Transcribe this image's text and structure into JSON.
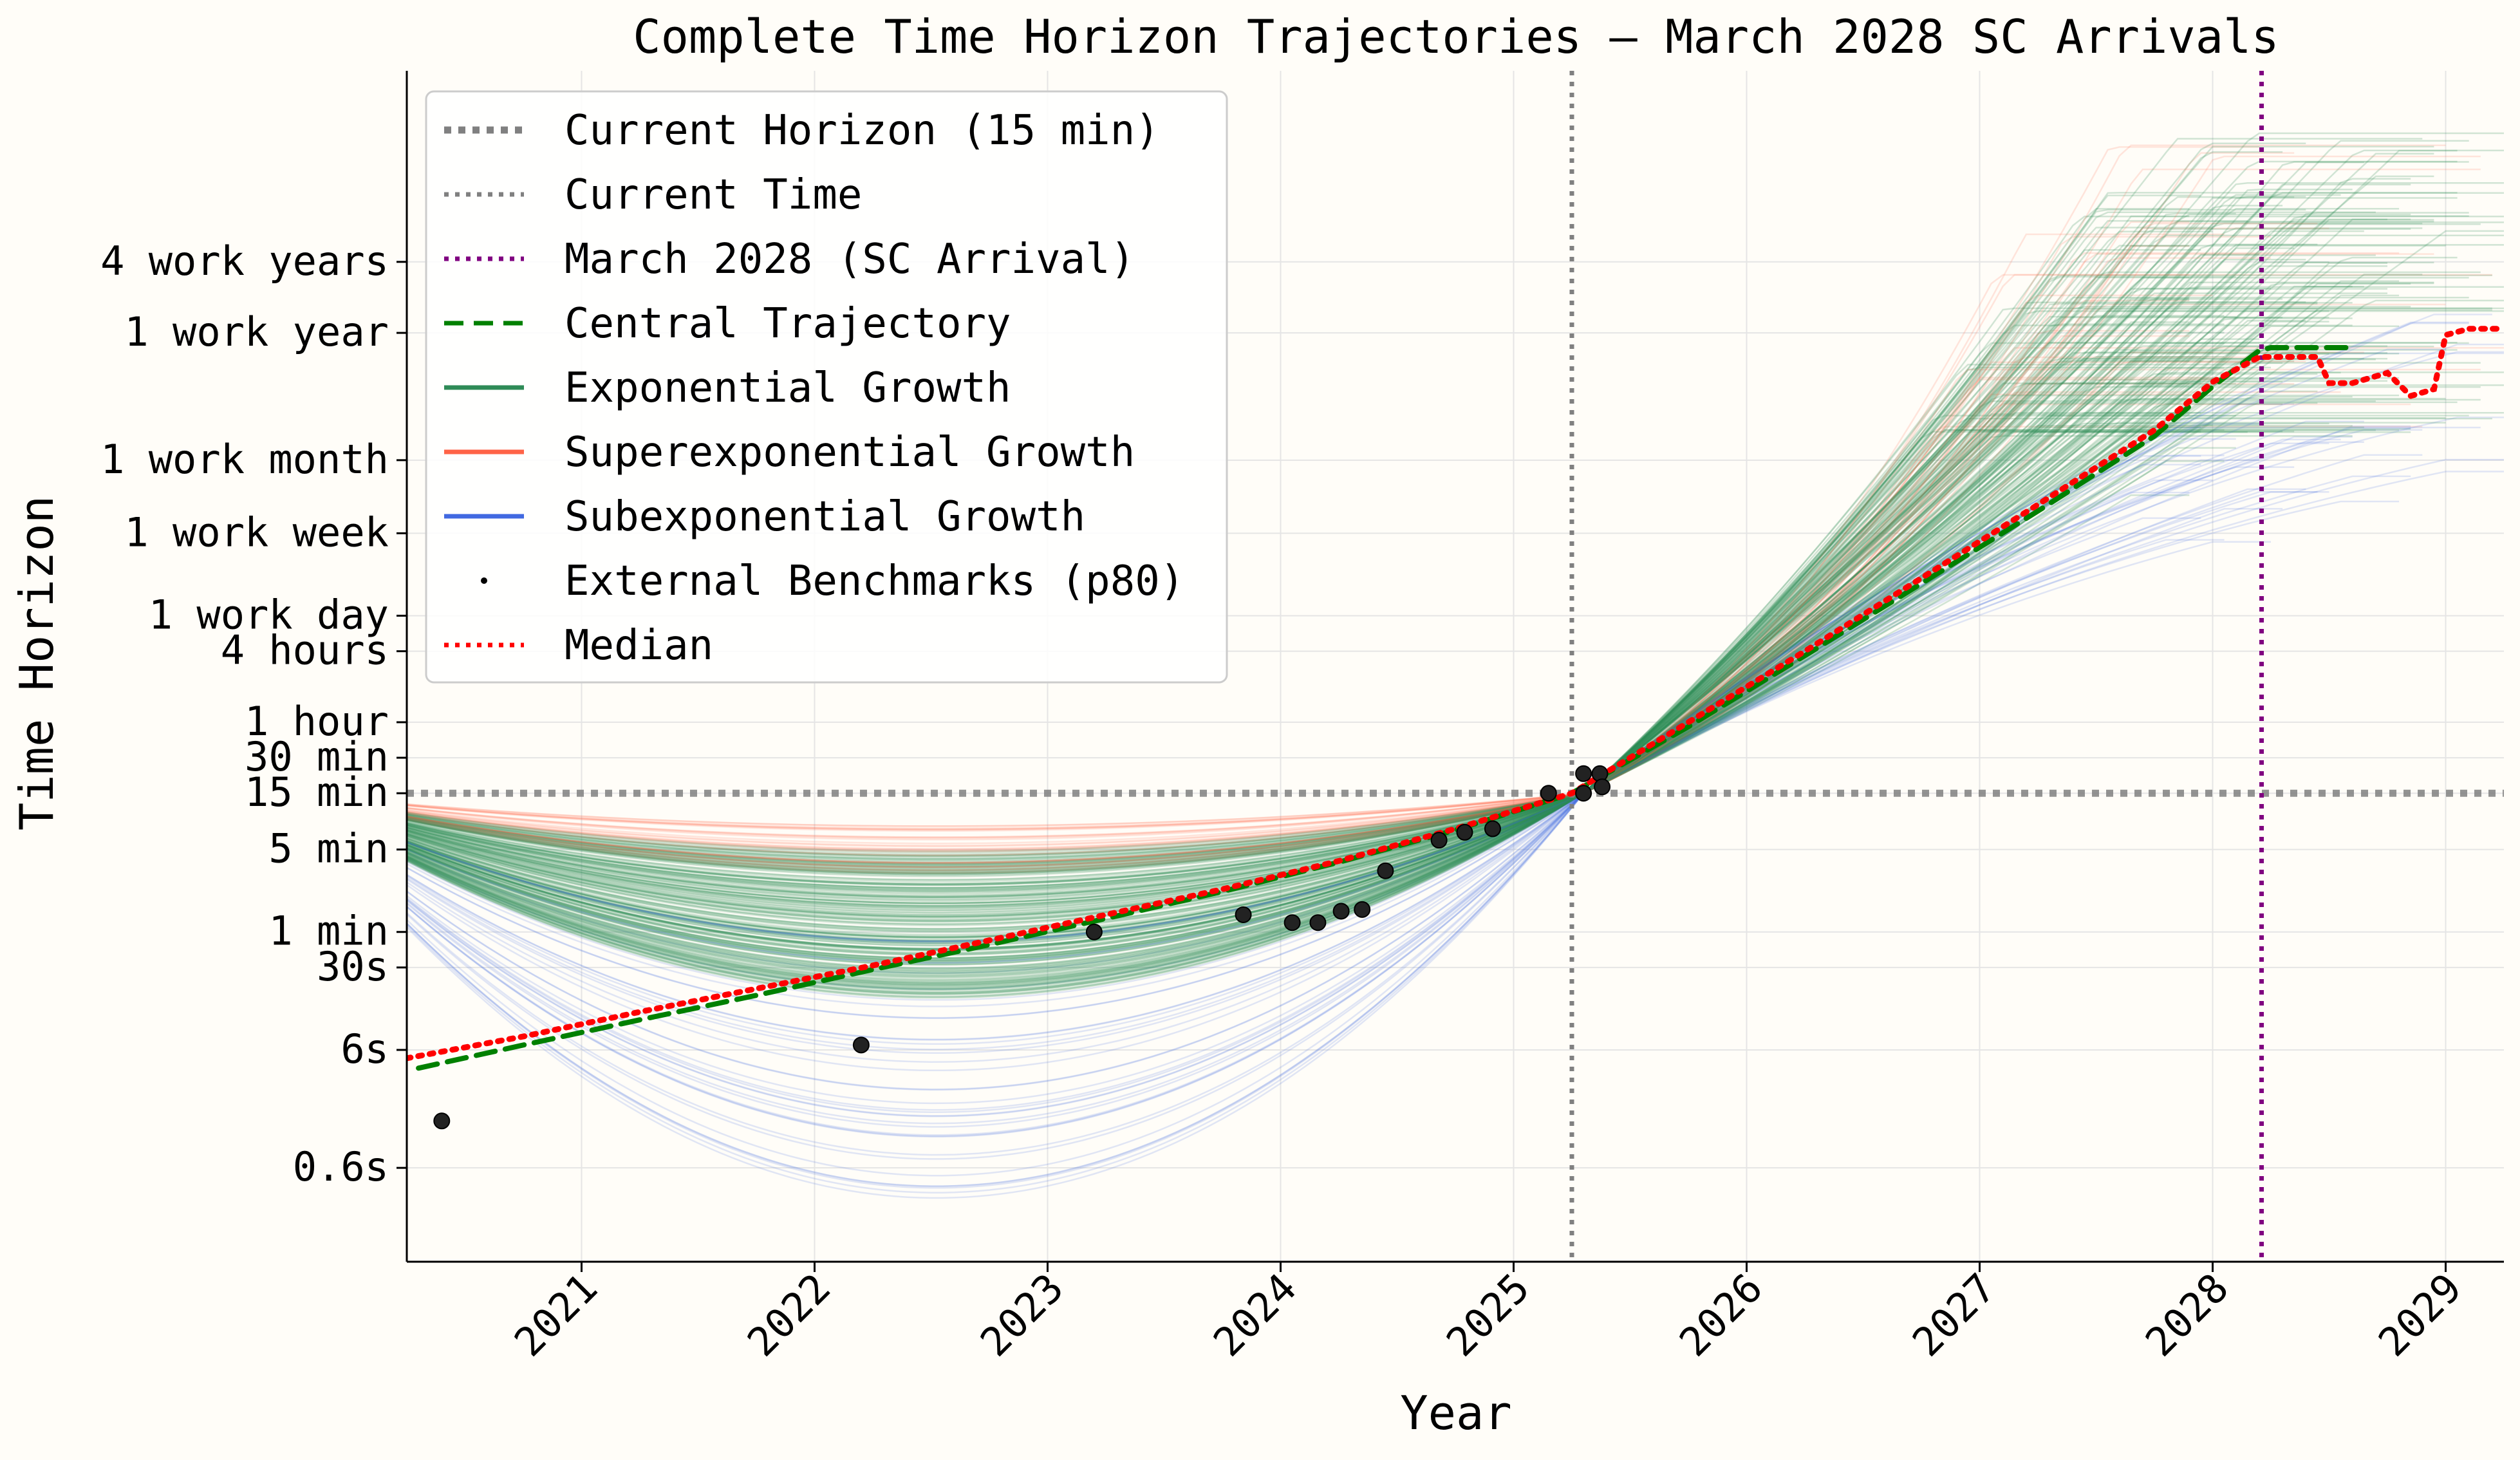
{
  "chart_data": {
    "type": "line",
    "title": "Complete Time Horizon Trajectories — March 2028 SC Arrivals",
    "xlabel": "Year",
    "ylabel": "Time Horizon",
    "y_scale": "log",
    "xlim": [
      2020.25,
      2029.25
    ],
    "ylim_minutes": [
      0.0016,
      20000000
    ],
    "x_ticks": [
      {
        "value": 2021,
        "label": "2021"
      },
      {
        "value": 2022,
        "label": "2022"
      },
      {
        "value": 2023,
        "label": "2023"
      },
      {
        "value": 2024,
        "label": "2024"
      },
      {
        "value": 2025,
        "label": "2025"
      },
      {
        "value": 2026,
        "label": "2026"
      },
      {
        "value": 2027,
        "label": "2027"
      },
      {
        "value": 2028,
        "label": "2028"
      },
      {
        "value": 2029,
        "label": "2029"
      }
    ],
    "y_ticks": [
      {
        "minutes": 0.01,
        "label": "0.6s"
      },
      {
        "minutes": 0.1,
        "label": "6s"
      },
      {
        "minutes": 0.5,
        "label": "30s"
      },
      {
        "minutes": 1,
        "label": "1 min"
      },
      {
        "minutes": 5,
        "label": "5 min"
      },
      {
        "minutes": 15,
        "label": "15 min"
      },
      {
        "minutes": 30,
        "label": "30 min"
      },
      {
        "minutes": 60,
        "label": "1 hour"
      },
      {
        "minutes": 240,
        "label": "4 hours"
      },
      {
        "minutes": 480,
        "label": "1 work day"
      },
      {
        "minutes": 2400,
        "label": "1 work week"
      },
      {
        "minutes": 10000,
        "label": "1 work month"
      },
      {
        "minutes": 120000,
        "label": "1 work year"
      },
      {
        "minutes": 480000,
        "label": "4 work years"
      }
    ],
    "grid": true,
    "legend_position": "upper-left",
    "legend": [
      {
        "label": "Current Horizon (15 min)",
        "color": "#808080",
        "style": "dotted-thick"
      },
      {
        "label": "Current Time",
        "color": "#808080",
        "style": "dotted"
      },
      {
        "label": "March 2028 (SC Arrival)",
        "color": "#800080",
        "style": "dotted"
      },
      {
        "label": "Central Trajectory",
        "color": "#008000",
        "style": "dashed"
      },
      {
        "label": "Exponential Growth",
        "color": "#2e8b57",
        "style": "solid"
      },
      {
        "label": "Superexponential Growth",
        "color": "#ff6347",
        "style": "solid"
      },
      {
        "label": "Subexponential Growth",
        "color": "#4169e1",
        "style": "solid"
      },
      {
        "label": "External Benchmarks (p80)",
        "color": "#000000",
        "style": "point"
      },
      {
        "label": "Median",
        "color": "#ff0000",
        "style": "dotted"
      }
    ],
    "reference_lines": {
      "current_horizon_minutes": 15,
      "current_time_year": 2025.25,
      "sc_arrival_year": 2028.21
    },
    "series": [
      {
        "name": "Central Trajectory",
        "color": "#008000",
        "x": [
          2020.3,
          2020.75,
          2021.25,
          2021.75,
          2022.25,
          2022.75,
          2023.25,
          2023.75,
          2024.25,
          2024.75,
          2025.25,
          2025.75,
          2026.25,
          2026.75,
          2027.25,
          2027.75,
          2028.0,
          2028.2,
          2028.25,
          2028.5,
          2028.6
        ],
        "y": [
          0.07,
          0.11,
          0.18,
          0.29,
          0.48,
          0.78,
          1.3,
          2.2,
          3.9,
          7.3,
          15,
          55,
          220,
          900,
          3700,
          16000,
          42000,
          85000,
          90000,
          90000,
          90000
        ]
      },
      {
        "name": "Median",
        "color": "#ff0000",
        "x": [
          2020.25,
          2020.75,
          2021.25,
          2021.75,
          2022.25,
          2022.75,
          2023.25,
          2023.75,
          2024.25,
          2024.75,
          2025.25,
          2025.75,
          2026.25,
          2026.75,
          2027.25,
          2027.75,
          2028.0,
          2028.2,
          2028.45,
          2028.5,
          2028.6,
          2028.75,
          2028.85,
          2028.95,
          2029.0,
          2029.1,
          2029.25
        ],
        "y": [
          0.085,
          0.13,
          0.21,
          0.33,
          0.52,
          0.85,
          1.4,
          2.3,
          4.0,
          7.5,
          15,
          60,
          240,
          1000,
          4200,
          18000,
          46000,
          75000,
          75000,
          45000,
          45000,
          55000,
          35000,
          40000,
          115000,
          130000,
          130000
        ]
      }
    ],
    "external_benchmarks_p80": {
      "x": [
        2020.4,
        2022.2,
        2023.2,
        2023.84,
        2024.05,
        2024.16,
        2024.26,
        2024.35,
        2024.45,
        2024.68,
        2024.79,
        2024.91,
        2025.15,
        2025.3,
        2025.3,
        2025.37,
        2025.38
      ],
      "y": [
        0.025,
        0.11,
        1.0,
        1.4,
        1.2,
        1.2,
        1.5,
        1.55,
        3.3,
        6.0,
        7.0,
        7.5,
        15,
        22,
        15,
        22,
        17
      ]
    },
    "sample_trajectories_note": "Sampled Monte Carlo trajectories (exponential, superexponential, subexponential growth) converging through ~15 min at 2025.3 and plateauing after reaching SC."
  },
  "colors": {
    "background": "#fffdf8",
    "grid": "#e5e5e5",
    "exponential": "#2e8b57",
    "superexponential": "#ff6347",
    "subexponential": "#4169e1"
  }
}
